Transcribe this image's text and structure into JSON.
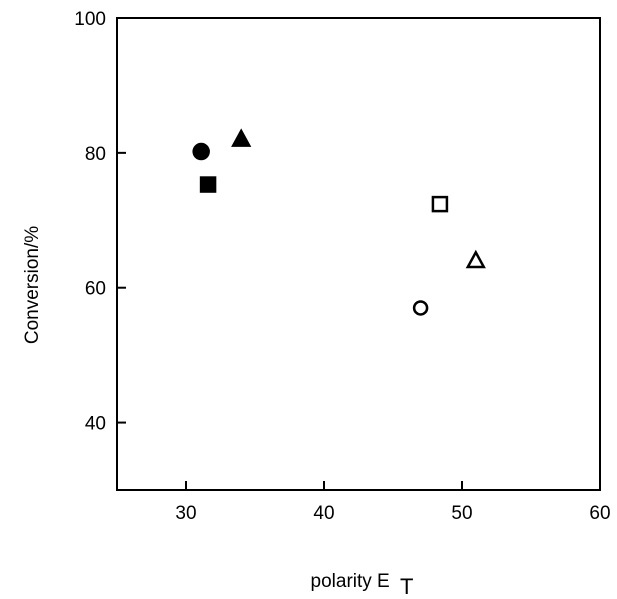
{
  "chart_data": {
    "type": "scatter",
    "title": "",
    "xlabel": "polarity E",
    "xlabel_subscript": "T",
    "ylabel": "Conversion/%",
    "xlim": [
      25,
      60
    ],
    "ylim": [
      30,
      100
    ],
    "x_ticks": [
      30,
      40,
      50,
      60
    ],
    "y_ticks": [
      40,
      60,
      80,
      100
    ],
    "grid": false,
    "legend": "none",
    "points": [
      {
        "x": 31.1,
        "y": 80.2,
        "marker": "circle",
        "filled": true
      },
      {
        "x": 31.6,
        "y": 75.3,
        "marker": "square",
        "filled": true
      },
      {
        "x": 34.0,
        "y": 82.0,
        "marker": "triangle",
        "filled": true
      },
      {
        "x": 47.0,
        "y": 57.0,
        "marker": "circle",
        "filled": false
      },
      {
        "x": 48.4,
        "y": 72.4,
        "marker": "square",
        "filled": false
      },
      {
        "x": 51.0,
        "y": 64.0,
        "marker": "triangle",
        "filled": false
      }
    ],
    "colors": {
      "ink": "#000000",
      "background": "#ffffff"
    }
  }
}
